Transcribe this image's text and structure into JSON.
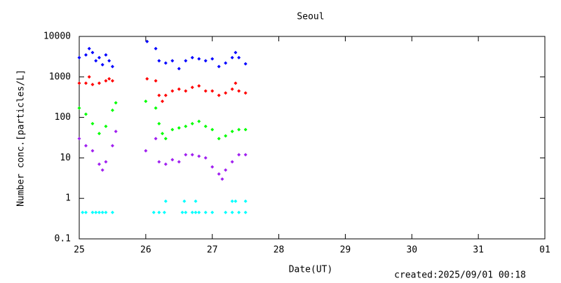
{
  "chart_data": {
    "type": "scatter",
    "title": "Seoul",
    "xlabel": "Date(UT)",
    "ylabel": "Number conc.[particles/L]",
    "footer": "created:2025/09/01 00:18",
    "xlim": [
      25,
      32
    ],
    "xticks": [
      25,
      26,
      27,
      28,
      29,
      30,
      31,
      {
        "value": 32,
        "label": "01"
      }
    ],
    "ylim": [
      0.1,
      10000
    ],
    "yticks": [
      0.1,
      1,
      10,
      100,
      1000,
      10000
    ],
    "ylog": true,
    "series": [
      {
        "color": "#0000ff",
        "x": [
          25.0,
          25.1,
          25.15,
          25.2,
          25.25,
          25.3,
          25.35,
          25.4,
          25.45,
          25.5,
          26.02,
          26.15,
          26.2,
          26.3,
          26.4,
          26.5,
          26.6,
          26.7,
          26.8,
          26.9,
          27.0,
          27.1,
          27.2,
          27.3,
          27.35,
          27.4,
          27.5
        ],
        "values": [
          3000,
          3500,
          5000,
          4000,
          2500,
          3000,
          2000,
          3500,
          2500,
          1800,
          7500,
          5000,
          2500,
          2200,
          2500,
          1600,
          2500,
          3000,
          2800,
          2500,
          2800,
          1800,
          2200,
          3000,
          4000,
          3000,
          2100
        ]
      },
      {
        "color": "#ff0000",
        "x": [
          25.0,
          25.1,
          25.15,
          25.2,
          25.3,
          25.4,
          25.45,
          25.5,
          26.02,
          26.15,
          26.2,
          26.25,
          26.3,
          26.4,
          26.5,
          26.6,
          26.7,
          26.8,
          26.9,
          27.0,
          27.1,
          27.2,
          27.3,
          27.35,
          27.4,
          27.5
        ],
        "values": [
          700,
          700,
          1000,
          650,
          700,
          800,
          900,
          800,
          900,
          800,
          350,
          250,
          350,
          450,
          500,
          450,
          550,
          600,
          450,
          450,
          350,
          400,
          500,
          700,
          450,
          400
        ]
      },
      {
        "color": "#00ff00",
        "x": [
          25.0,
          25.1,
          25.2,
          25.3,
          25.4,
          25.5,
          25.55,
          26.0,
          26.15,
          26.2,
          26.25,
          26.3,
          26.4,
          26.5,
          26.6,
          26.7,
          26.8,
          26.9,
          27.0,
          27.1,
          27.2,
          27.3,
          27.4,
          27.5
        ],
        "values": [
          170,
          120,
          70,
          40,
          60,
          150,
          230,
          250,
          170,
          70,
          40,
          30,
          50,
          55,
          60,
          70,
          80,
          60,
          50,
          30,
          35,
          45,
          50,
          50
        ]
      },
      {
        "color": "#a020f0",
        "x": [
          25.0,
          25.1,
          25.2,
          25.3,
          25.35,
          25.4,
          25.5,
          25.55,
          26.0,
          26.15,
          26.2,
          26.3,
          26.4,
          26.5,
          26.6,
          26.7,
          26.8,
          26.9,
          27.0,
          27.1,
          27.15,
          27.2,
          27.3,
          27.4,
          27.5
        ],
        "values": [
          30,
          20,
          15,
          7,
          5,
          8,
          20,
          45,
          15,
          30,
          8,
          7,
          9,
          8,
          12,
          12,
          11,
          10,
          6,
          4,
          3,
          5,
          8,
          12,
          12
        ]
      },
      {
        "color": "#00ffff",
        "x": [
          25.05,
          25.1,
          25.2,
          25.25,
          25.3,
          25.35,
          25.4,
          25.5,
          26.12,
          26.2,
          26.28,
          26.55,
          26.6,
          26.7,
          26.75,
          26.8,
          26.9,
          27.0,
          27.2,
          27.3,
          27.4,
          27.5,
          26.3,
          26.58,
          26.75,
          27.3,
          27.35,
          27.5
        ],
        "values": [
          0.45,
          0.45,
          0.45,
          0.45,
          0.45,
          0.45,
          0.45,
          0.45,
          0.45,
          0.45,
          0.45,
          0.45,
          0.45,
          0.45,
          0.45,
          0.45,
          0.45,
          0.45,
          0.45,
          0.45,
          0.45,
          0.45,
          0.85,
          0.85,
          0.85,
          0.85,
          0.85,
          0.85
        ]
      }
    ]
  }
}
